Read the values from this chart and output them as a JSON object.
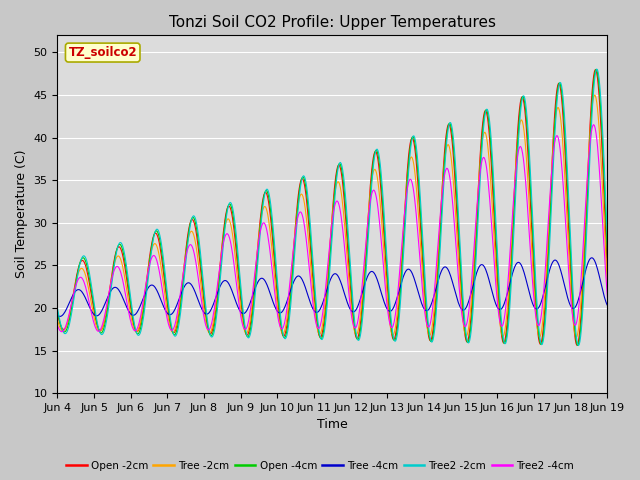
{
  "title": "Tonzi Soil CO2 Profile: Upper Temperatures",
  "xlabel": "Time",
  "ylabel": "Soil Temperature (C)",
  "ylim": [
    10,
    52
  ],
  "yticks": [
    10,
    15,
    20,
    25,
    30,
    35,
    40,
    45,
    50
  ],
  "annotation": "TZ_soilco2",
  "series_colors": [
    "#ff0000",
    "#ffa500",
    "#00cc00",
    "#0000cc",
    "#00cccc",
    "#ff00ff"
  ],
  "series_labels": [
    "Open -2cm",
    "Tree -2cm",
    "Open -4cm",
    "Tree -4cm",
    "Tree2 -2cm",
    "Tree2 -4cm"
  ],
  "background_color": "#dcdcdc",
  "title_fontsize": 11,
  "label_fontsize": 9,
  "tick_fontsize": 8,
  "n_days": 15,
  "start_day": 4
}
